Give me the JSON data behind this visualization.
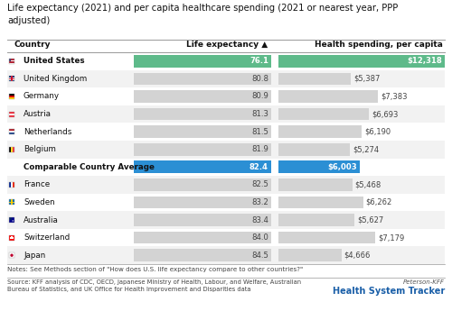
{
  "title": "Life expectancy (2021) and per capita healthcare spending (2021 or nearest year, PPP\nadjusted)",
  "col_country": "Country",
  "col_life": "Life expectancy ▲",
  "col_health": "Health spending, per capita",
  "countries": [
    "United States",
    "United Kingdom",
    "Germany",
    "Austria",
    "Netherlands",
    "Belgium",
    "Comparable Country Average",
    "France",
    "Sweden",
    "Australia",
    "Switzerland",
    "Japan"
  ],
  "life_expectancy": [
    76.1,
    80.8,
    80.9,
    81.3,
    81.5,
    81.9,
    82.4,
    82.5,
    83.2,
    83.4,
    84.0,
    84.5
  ],
  "health_spending": [
    12318,
    5387,
    7383,
    6693,
    6190,
    5274,
    6003,
    5468,
    6262,
    5627,
    7179,
    4666
  ],
  "health_spending_labels": [
    "$12,318",
    "$5,387",
    "$7,383",
    "$6,693",
    "$6,190",
    "$5,274",
    "$6,003",
    "$5,468",
    "$6,262",
    "$5,627",
    "$7,179",
    "$4,666"
  ],
  "is_us": [
    true,
    false,
    false,
    false,
    false,
    false,
    false,
    false,
    false,
    false,
    false,
    false
  ],
  "is_avg": [
    false,
    false,
    false,
    false,
    false,
    false,
    true,
    false,
    false,
    false,
    false,
    false
  ],
  "bold": [
    true,
    false,
    false,
    false,
    false,
    false,
    true,
    false,
    false,
    false,
    false,
    false
  ],
  "bar_color_us": "#5eba8a",
  "bar_color_avg": "#2b8fd4",
  "bar_color_normal": "#d3d3d3",
  "text_color_light": "#ffffff",
  "text_color_dark": "#444444",
  "notes": "Notes: See Methods section of \"How does U.S. life expectancy compare to other countries?\"",
  "source": "Source: KFF analysis of CDC, OECD, Japanese Ministry of Health, Labour, and Welfare, Australian\nBureau of Statistics, and UK Office for Health Improvement and Disparities data",
  "logo_line1": "Peterson-KFF",
  "logo_line2": "Health System Tracker",
  "bg_color": "#ffffff",
  "row_alt_color": "#f2f2f2",
  "health_max": 12318,
  "fig_width": 5.0,
  "fig_height": 3.45,
  "dpi": 100
}
